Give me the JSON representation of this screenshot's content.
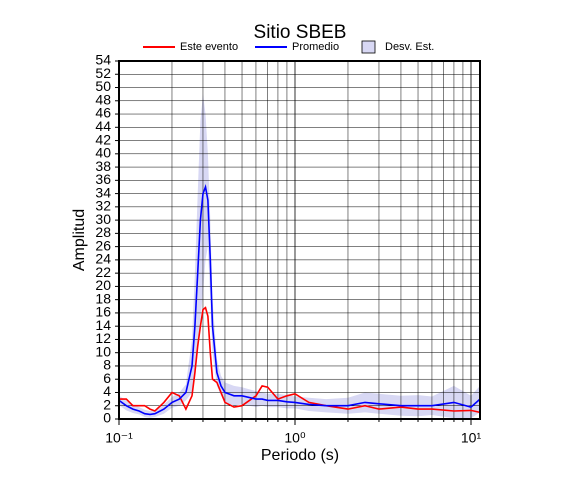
{
  "chart_data": {
    "type": "line",
    "title": "Sitio SBEB",
    "x_label": "Periodo (s)",
    "y_label": "Amplitud",
    "x_scale": "log",
    "grid": true,
    "legend": "top",
    "x": [
      0.1,
      0.11,
      0.12,
      0.13,
      0.14,
      0.15,
      0.16,
      0.18,
      0.2,
      0.22,
      0.24,
      0.26,
      0.27,
      0.28,
      0.29,
      0.3,
      0.31,
      0.32,
      0.33,
      0.34,
      0.36,
      0.38,
      0.4,
      0.45,
      0.5,
      0.6,
      0.65,
      0.7,
      0.8,
      0.9,
      1.0,
      1.2,
      1.5,
      2,
      2.5,
      3,
      4,
      5,
      6,
      8,
      10,
      11.25
    ],
    "series": [
      {
        "name": "Este evento",
        "color": "#ff0000",
        "values": [
          3,
          3,
          2,
          2,
          2,
          1.5,
          1.2,
          2.5,
          4,
          3.5,
          1.5,
          3.5,
          7,
          11,
          14,
          16.5,
          16.8,
          15.5,
          10,
          6,
          5.5,
          4,
          2.5,
          1.8,
          2,
          3.5,
          5,
          4.8,
          3,
          3.5,
          3.8,
          2.5,
          2,
          1.5,
          2,
          1.5,
          1.8,
          1.5,
          1.5,
          1.2,
          1.3,
          1
        ]
      },
      {
        "name": "Promedio",
        "color": "#0000ff",
        "values": [
          2.8,
          2,
          1.5,
          1.2,
          0.8,
          0.7,
          0.8,
          1.5,
          2.5,
          3,
          4,
          8,
          14,
          22,
          30,
          34,
          35,
          33,
          24,
          14,
          7,
          5,
          4,
          3.5,
          3.5,
          3,
          3,
          2.8,
          2.8,
          2.6,
          2.5,
          2.2,
          2,
          2,
          2.5,
          2.3,
          2,
          2,
          2,
          2.5,
          1.8,
          3
        ]
      },
      {
        "name": "Desv. Est.",
        "color": "#d8d8f4",
        "upper": [
          3.5,
          2.8,
          2.2,
          1.8,
          1.4,
          1.2,
          1.3,
          2.2,
          3.3,
          4,
          5.2,
          12,
          22,
          34,
          45,
          49,
          46,
          40,
          30,
          18,
          9,
          6.5,
          5.5,
          5,
          4.8,
          4.2,
          4,
          3.8,
          3.8,
          3.6,
          3.4,
          3.2,
          3,
          3.2,
          4,
          3.8,
          3.5,
          3.6,
          3.4,
          5,
          3.5,
          5
        ],
        "lower": [
          2.1,
          1.3,
          0.9,
          0.7,
          0.3,
          0.2,
          0.3,
          0.8,
          1.7,
          2,
          2.8,
          4,
          6,
          10,
          15,
          19,
          24,
          26,
          18,
          10,
          5,
          3.5,
          2.5,
          2,
          2.2,
          1.8,
          2,
          1.8,
          1.8,
          1.6,
          1.6,
          1.2,
          1,
          0.8,
          1,
          0.8,
          0.5,
          0.4,
          0.6,
          0.1,
          0.1,
          1
        ]
      }
    ],
    "xlim": [
      0.1,
      11.25
    ],
    "xticks": [
      {
        "value": 0.1,
        "label": "10⁻¹"
      },
      {
        "value": 1,
        "label": "10⁰"
      },
      {
        "value": 10,
        "label": "10¹"
      }
    ],
    "xminor_ticks": [
      0.2,
      0.3,
      0.4,
      0.5,
      0.6,
      0.7,
      0.8,
      0.9,
      2,
      3,
      4,
      5,
      6,
      7,
      8,
      9
    ],
    "ylim": [
      0,
      54
    ],
    "yticks": [
      0,
      2,
      4,
      6,
      8,
      10,
      12,
      14,
      16,
      18,
      20,
      22,
      24,
      26,
      28,
      30,
      32,
      34,
      36,
      38,
      40,
      42,
      44,
      46,
      48,
      50,
      52,
      54
    ]
  }
}
